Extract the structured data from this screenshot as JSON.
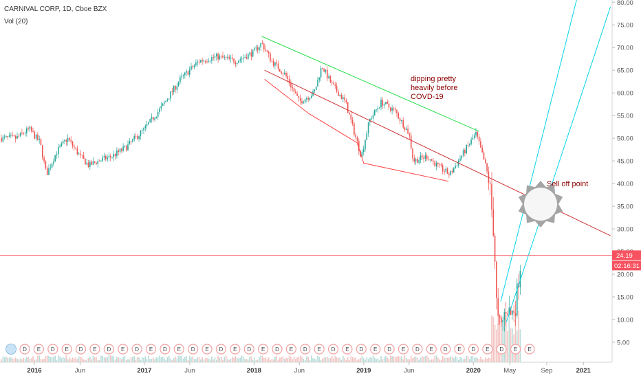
{
  "header": {
    "symbol_line": "CARNIVAL CORP, 1D, Cboe BZX",
    "volume_line": "Vol (20)"
  },
  "chart_data": {
    "type": "candlestick",
    "y_axis": {
      "position": "right",
      "ylim": [
        0,
        82
      ],
      "ticks": [
        "80.00",
        "75.00",
        "70.00",
        "65.00",
        "60.00",
        "55.00",
        "50.00",
        "45.00",
        "40.00",
        "35.00",
        "30.00",
        "25.00",
        "20.00",
        "15.00",
        "10.00",
        "5.00"
      ]
    },
    "x_axis": {
      "ticks": [
        {
          "label": "2016",
          "bold": true
        },
        {
          "label": "Jun",
          "bold": false
        },
        {
          "label": "2017",
          "bold": true
        },
        {
          "label": "Jun",
          "bold": false
        },
        {
          "label": "2018",
          "bold": true
        },
        {
          "label": "Jun",
          "bold": false
        },
        {
          "label": "2019",
          "bold": true
        },
        {
          "label": "Jun",
          "bold": false
        },
        {
          "label": "2020",
          "bold": true
        },
        {
          "label": "May",
          "bold": false
        },
        {
          "label": "Sep",
          "bold": false
        },
        {
          "label": "2021",
          "bold": true
        }
      ]
    },
    "price_path": [
      [
        "2015-11-01",
        50
      ],
      [
        "2015-12-15",
        52
      ],
      [
        "2016-01-20",
        49
      ],
      [
        "2016-02-10",
        42
      ],
      [
        "2016-03-15",
        47
      ],
      [
        "2016-04-20",
        50
      ],
      [
        "2016-06-01",
        46
      ],
      [
        "2016-06-30",
        44
      ],
      [
        "2016-08-01",
        45
      ],
      [
        "2016-09-15",
        46
      ],
      [
        "2016-11-01",
        48
      ],
      [
        "2017-01-01",
        52
      ],
      [
        "2017-03-01",
        57
      ],
      [
        "2017-05-01",
        63
      ],
      [
        "2017-07-01",
        67
      ],
      [
        "2017-09-01",
        68
      ],
      [
        "2017-11-01",
        67
      ],
      [
        "2018-01-01",
        69
      ],
      [
        "2018-01-26",
        71
      ],
      [
        "2018-03-01",
        67
      ],
      [
        "2018-04-15",
        64
      ],
      [
        "2018-06-01",
        58
      ],
      [
        "2018-07-20",
        60
      ],
      [
        "2018-08-15",
        66
      ],
      [
        "2018-09-15",
        62
      ],
      [
        "2018-11-01",
        58
      ],
      [
        "2018-12-24",
        46
      ],
      [
        "2019-01-20",
        54
      ],
      [
        "2019-03-01",
        58
      ],
      [
        "2019-04-15",
        56
      ],
      [
        "2019-06-01",
        51
      ],
      [
        "2019-06-15",
        45
      ],
      [
        "2019-08-01",
        46
      ],
      [
        "2019-09-01",
        44
      ],
      [
        "2019-10-15",
        42
      ],
      [
        "2019-12-01",
        47
      ],
      [
        "2020-01-10",
        51
      ],
      [
        "2020-02-10",
        44
      ],
      [
        "2020-02-24",
        40
      ],
      [
        "2020-03-10",
        28
      ],
      [
        "2020-03-20",
        10
      ],
      [
        "2020-04-01",
        8
      ],
      [
        "2020-04-20",
        13
      ],
      [
        "2020-05-05",
        11
      ],
      [
        "2020-05-20",
        13
      ],
      [
        "2020-06-08",
        24
      ]
    ],
    "last_price": "24.19",
    "countdown": "02:16:31",
    "annotations": [
      {
        "text_lines": [
          "dipping pretty",
          "heavily before",
          "COVD-19"
        ]
      },
      {
        "text": "Sell off point"
      }
    ],
    "trendlines": [
      {
        "color": "#22dd44",
        "from": [
          "2018-01-26",
          72.5
        ],
        "to": [
          "2020-01-20",
          51.5
        ]
      },
      {
        "color": "#cc3333",
        "from": [
          "2018-02-05",
          65
        ],
        "to": [
          "2021-04-01",
          28.5
        ]
      },
      {
        "color": "#00d4e6",
        "from": [
          "2020-04-01",
          14
        ],
        "to": [
          "2020-12-15",
          82
        ]
      },
      {
        "color": "#00d4e6",
        "from": [
          "2020-04-20",
          9.5
        ],
        "to": [
          "2021-04-01",
          79
        ]
      }
    ],
    "polylines": [
      {
        "color": "#ff4444",
        "points": [
          [
            "2018-02-05",
            63
          ],
          [
            "2018-07-01",
            55.5
          ],
          [
            "2018-12-10",
            49
          ]
        ]
      },
      {
        "color": "#ff4444",
        "points": [
          [
            "2018-12-10",
            49
          ],
          [
            "2019-01-01",
            44.5
          ],
          [
            "2019-10-10",
            40.5
          ]
        ]
      }
    ],
    "event_markers": [
      "D",
      "E",
      "D",
      "E",
      "D",
      "E",
      "D",
      "E",
      "D",
      "E",
      "D",
      "E",
      "D",
      "E",
      "D",
      "E",
      "D",
      "E",
      "D",
      "E",
      "D",
      "E",
      "D",
      "E",
      "D",
      "E",
      "D",
      "E",
      "D",
      "E",
      "D",
      "E",
      "D",
      "E",
      "D",
      "E",
      "E"
    ],
    "colors": {
      "up": "#26a69a",
      "down": "#ef5350",
      "price_line": "#f7525f",
      "event_circle": "#f3a0a0",
      "gear": "#a0a0a0"
    }
  }
}
